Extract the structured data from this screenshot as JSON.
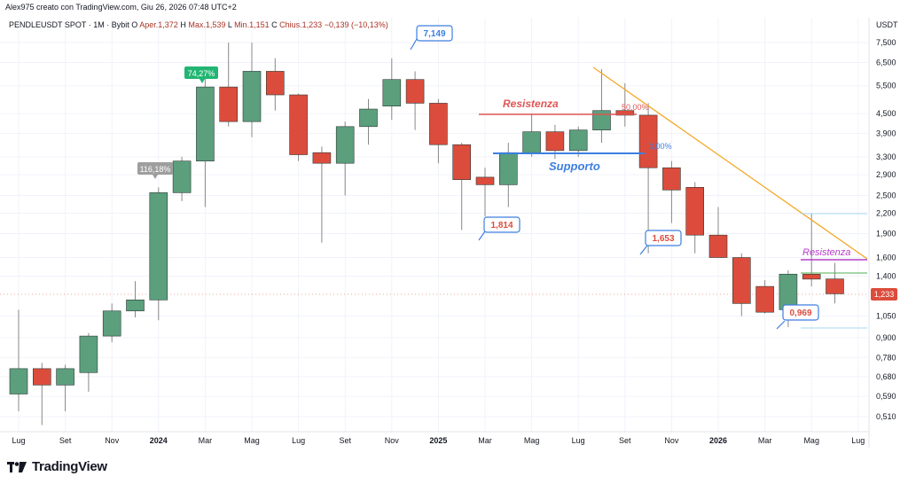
{
  "header": {
    "credit": "Alex975 creato con TradingView.com, Giu 26, 2026 07:48 UTC+2",
    "symbol": "PENDLEUSDT SPOT · 1M · Bybit",
    "o_label": "O",
    "open": "Aper.1,372",
    "high_label": "H",
    "high": "Max.1,539",
    "low_label": "L",
    "low": "Min.1,151",
    "close_label": "C",
    "close": "Chius.1,233",
    "change": "−0,139 (−10,13%)",
    "currency": "USDT"
  },
  "footer": {
    "logo": "TradingView"
  },
  "colors": {
    "up": "#5b9f7d",
    "down": "#dc4c3c",
    "resistance_red": "#e05555",
    "support_blue": "#3d7ee0",
    "trendline": "#f5a623",
    "resistance_purple": "#b53ec8",
    "support_green": "#4caf50",
    "light_blue": "#a7d8f0"
  },
  "chart_data": {
    "type": "candlestick",
    "scale": "log",
    "ylim": [
      0.45,
      8.6
    ],
    "x_tick_labels": [
      "Lug",
      "Set",
      "Nov",
      "2024",
      "Mar",
      "Mag",
      "Lug",
      "Set",
      "Nov",
      "2025",
      "Mar",
      "Mag",
      "Lug",
      "Set",
      "Nov",
      "2026",
      "Mar",
      "Mag",
      "Lug"
    ],
    "y_tick_labels": [
      "7,500",
      "6,500",
      "5,500",
      "4,500",
      "3,900",
      "3,300",
      "2,900",
      "2,500",
      "2,200",
      "1,900",
      "1,600",
      "1,400",
      "1,233",
      "1,050",
      "0,900",
      "0,780",
      "0,680",
      "0,590",
      "0,510"
    ],
    "y_tick_values": [
      7.5,
      6.5,
      5.5,
      4.5,
      3.9,
      3.3,
      2.9,
      2.5,
      2.2,
      1.9,
      1.6,
      1.4,
      1.233,
      1.05,
      0.9,
      0.78,
      0.68,
      0.59,
      0.51
    ],
    "candles": [
      {
        "date": "2023-07",
        "o": 0.6,
        "h": 1.1,
        "l": 0.53,
        "c": 0.72
      },
      {
        "date": "2023-08",
        "o": 0.72,
        "h": 0.75,
        "l": 0.48,
        "c": 0.64
      },
      {
        "date": "2023-09",
        "o": 0.64,
        "h": 0.74,
        "l": 0.53,
        "c": 0.72
      },
      {
        "date": "2023-10",
        "o": 0.7,
        "h": 0.93,
        "l": 0.61,
        "c": 0.91
      },
      {
        "date": "2023-11",
        "o": 0.91,
        "h": 1.15,
        "l": 0.87,
        "c": 1.09
      },
      {
        "date": "2023-12",
        "o": 1.09,
        "h": 1.35,
        "l": 1.04,
        "c": 1.18
      },
      {
        "date": "2024-01",
        "o": 1.18,
        "h": 2.65,
        "l": 1.02,
        "c": 2.55
      },
      {
        "date": "2024-02",
        "o": 2.55,
        "h": 3.3,
        "l": 2.4,
        "c": 3.2
      },
      {
        "date": "2024-03",
        "o": 3.2,
        "h": 6.2,
        "l": 2.3,
        "c": 5.45
      },
      {
        "date": "2024-04",
        "o": 5.45,
        "h": 7.5,
        "l": 4.1,
        "c": 4.25
      },
      {
        "date": "2024-05",
        "o": 4.25,
        "h": 7.5,
        "l": 3.8,
        "c": 6.1
      },
      {
        "date": "2024-06",
        "o": 6.1,
        "h": 6.7,
        "l": 4.6,
        "c": 5.15
      },
      {
        "date": "2024-07",
        "o": 5.15,
        "h": 5.2,
        "l": 3.2,
        "c": 3.35
      },
      {
        "date": "2024-08",
        "o": 3.4,
        "h": 3.55,
        "l": 1.78,
        "c": 3.15
      },
      {
        "date": "2024-09",
        "o": 3.15,
        "h": 4.25,
        "l": 2.5,
        "c": 4.1
      },
      {
        "date": "2024-10",
        "o": 4.1,
        "h": 5.0,
        "l": 3.6,
        "c": 4.65
      },
      {
        "date": "2024-11",
        "o": 4.75,
        "h": 6.7,
        "l": 4.3,
        "c": 5.75
      },
      {
        "date": "2024-12",
        "o": 5.75,
        "h": 6.1,
        "l": 4.0,
        "c": 4.85
      },
      {
        "date": "2025-01",
        "o": 4.85,
        "h": 5.0,
        "l": 3.15,
        "c": 3.6
      },
      {
        "date": "2025-02",
        "o": 3.6,
        "h": 3.65,
        "l": 1.95,
        "c": 2.8
      },
      {
        "date": "2025-03",
        "o": 2.85,
        "h": 3.05,
        "l": 2.15,
        "c": 2.7
      },
      {
        "date": "2025-04",
        "o": 2.7,
        "h": 3.65,
        "l": 2.3,
        "c": 3.4
      },
      {
        "date": "2025-05",
        "o": 3.4,
        "h": 4.5,
        "l": 3.3,
        "c": 3.95
      },
      {
        "date": "2025-06",
        "o": 3.95,
        "h": 4.15,
        "l": 3.25,
        "c": 3.45
      },
      {
        "date": "2025-07",
        "o": 3.45,
        "h": 4.1,
        "l": 3.3,
        "c": 4.0
      },
      {
        "date": "2025-08",
        "o": 4.0,
        "h": 6.2,
        "l": 3.65,
        "c": 4.6
      },
      {
        "date": "2025-09",
        "o": 4.6,
        "h": 5.6,
        "l": 4.1,
        "c": 4.45
      },
      {
        "date": "2025-10",
        "o": 4.45,
        "h": 4.85,
        "l": 1.65,
        "c": 3.05
      },
      {
        "date": "2025-11",
        "o": 3.05,
        "h": 3.2,
        "l": 2.05,
        "c": 2.6
      },
      {
        "date": "2025-12",
        "o": 2.65,
        "h": 2.75,
        "l": 1.65,
        "c": 1.88
      },
      {
        "date": "2026-01",
        "o": 1.88,
        "h": 2.3,
        "l": 1.6,
        "c": 1.6
      },
      {
        "date": "2026-02",
        "o": 1.6,
        "h": 1.65,
        "l": 1.05,
        "c": 1.15
      },
      {
        "date": "2026-03",
        "o": 1.3,
        "h": 1.36,
        "l": 1.07,
        "c": 1.08
      },
      {
        "date": "2026-04",
        "o": 1.1,
        "h": 1.46,
        "l": 0.97,
        "c": 1.42
      },
      {
        "date": "2026-05",
        "o": 1.42,
        "h": 2.2,
        "l": 1.3,
        "c": 1.37
      },
      {
        "date": "2026-06",
        "o": 1.372,
        "h": 1.539,
        "l": 1.151,
        "c": 1.233
      }
    ],
    "price_labels": {
      "peak": "7,149",
      "low_feb25": "1,814",
      "low_oct25": "1,653",
      "low_apr26": "0,969",
      "gain_1": "116,18%",
      "gain_2": "74,27%",
      "last": "1,233"
    },
    "annotations": {
      "resistance_1": "Resistenza",
      "support_1": "Supporto",
      "resistance_2": "Resistenza",
      "fib_50": "50,00%",
      "fib_0": "0,00%"
    }
  }
}
